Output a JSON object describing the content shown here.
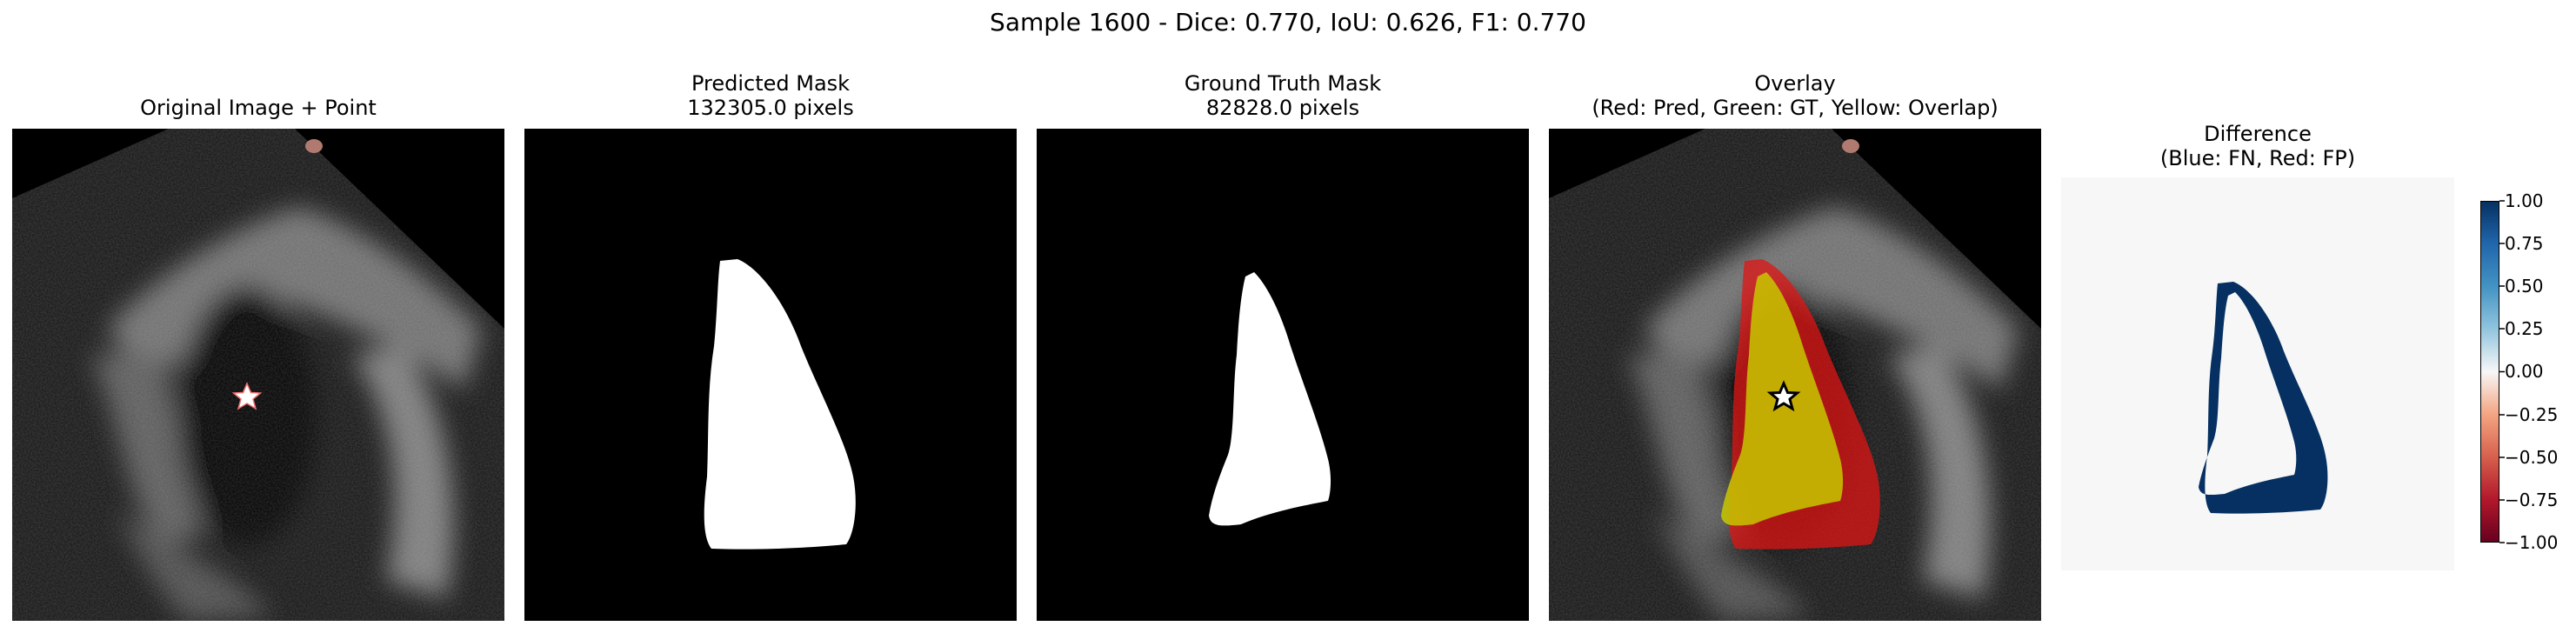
{
  "figure": {
    "suptitle": "Sample 1600 - Dice: 0.770, IoU: 0.626, F1: 0.770"
  },
  "panels": [
    {
      "id": "original",
      "title_lines": [
        "Original Image + Point"
      ]
    },
    {
      "id": "predicted",
      "title_lines": [
        "Predicted Mask",
        "132305.0 pixels"
      ]
    },
    {
      "id": "ground_truth",
      "title_lines": [
        "Ground Truth Mask",
        "82828.0 pixels"
      ]
    },
    {
      "id": "overlay",
      "title_lines": [
        "Overlay",
        "(Red: Pred, Green: GT, Yellow: Overlap)"
      ]
    },
    {
      "id": "difference",
      "title_lines": [
        "Difference",
        "(Blue: FN, Red: FP)"
      ]
    }
  ],
  "colorbar": {
    "ticks": [
      "1.00",
      "0.75",
      "0.50",
      "0.25",
      "0.00",
      "−0.25",
      "−0.50",
      "−0.75",
      "−1.00"
    ],
    "colors": {
      "top": "#053061",
      "mid": "#f7f7f7",
      "bottom": "#67001f"
    }
  }
}
